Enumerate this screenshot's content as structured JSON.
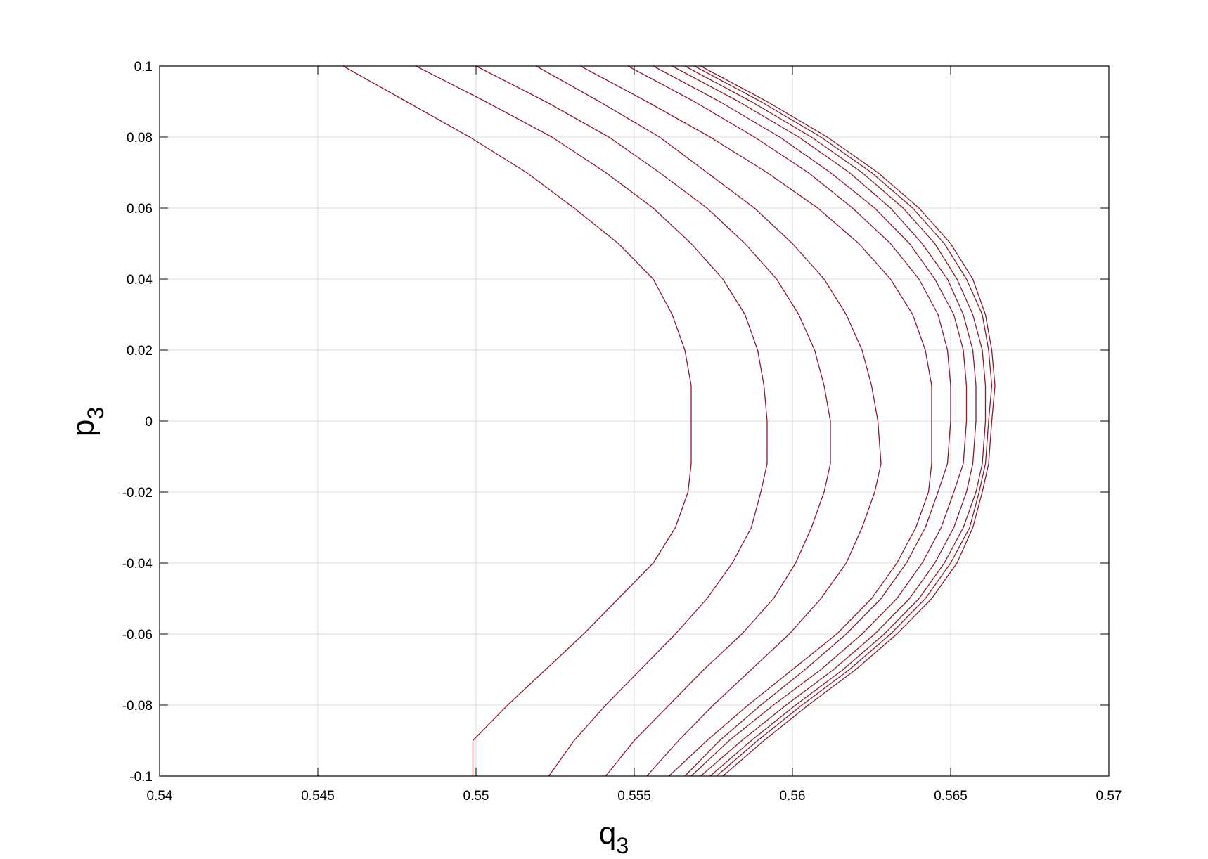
{
  "chart_data": {
    "type": "line",
    "title": "",
    "xlabel": {
      "main": "q",
      "sub": "3"
    },
    "ylabel": {
      "main": "p",
      "sub": "3"
    },
    "xlim": [
      0.54,
      0.57
    ],
    "ylim": [
      -0.1,
      0.1
    ],
    "grid": true,
    "line_color": "#8b1a2b",
    "x_ticks": [
      0.54,
      0.545,
      0.55,
      0.555,
      0.56,
      0.565,
      0.57
    ],
    "x_tick_labels": [
      "0.54",
      "0.545",
      "0.55",
      "0.555",
      "0.56",
      "0.565",
      "0.57"
    ],
    "y_ticks": [
      0.1,
      0.08,
      0.06,
      0.04,
      0.02,
      0,
      -0.02,
      -0.04,
      -0.06,
      -0.08,
      -0.1
    ],
    "y_tick_labels": [
      "0.1",
      "0.08",
      "0.06",
      "0.04",
      "0.02",
      "0",
      "-0.02",
      "-0.04",
      "-0.06",
      "-0.08",
      "-0.1"
    ],
    "series": [
      {
        "points": [
          [
            0.5458,
            0.1
          ],
          [
            0.5478,
            0.09
          ],
          [
            0.5498,
            0.08
          ],
          [
            0.5516,
            0.07
          ],
          [
            0.5531,
            0.06
          ],
          [
            0.5545,
            0.05
          ],
          [
            0.5556,
            0.04
          ],
          [
            0.5562,
            0.03
          ],
          [
            0.5566,
            0.02
          ],
          [
            0.5568,
            0.01
          ],
          [
            0.5568,
            0
          ],
          [
            0.5568,
            -0.012
          ],
          [
            0.5567,
            -0.02
          ],
          [
            0.5563,
            -0.03
          ],
          [
            0.5556,
            -0.04
          ],
          [
            0.5545,
            -0.05
          ],
          [
            0.5534,
            -0.06
          ],
          [
            0.5522,
            -0.07
          ],
          [
            0.551,
            -0.08
          ],
          [
            0.5499,
            -0.09
          ],
          [
            0.5499,
            -0.1
          ]
        ]
      },
      {
        "points": [
          [
            0.5481,
            0.1
          ],
          [
            0.5503,
            0.09
          ],
          [
            0.5524,
            0.08
          ],
          [
            0.5541,
            0.07
          ],
          [
            0.5556,
            0.06
          ],
          [
            0.5568,
            0.05
          ],
          [
            0.5578,
            0.04
          ],
          [
            0.5585,
            0.03
          ],
          [
            0.5589,
            0.02
          ],
          [
            0.5591,
            0.01
          ],
          [
            0.5592,
            0
          ],
          [
            0.5592,
            -0.012
          ],
          [
            0.559,
            -0.02
          ],
          [
            0.5587,
            -0.03
          ],
          [
            0.5581,
            -0.04
          ],
          [
            0.5573,
            -0.05
          ],
          [
            0.5563,
            -0.06
          ],
          [
            0.5552,
            -0.07
          ],
          [
            0.5541,
            -0.08
          ],
          [
            0.5531,
            -0.09
          ],
          [
            0.5523,
            -0.1
          ]
        ]
      },
      {
        "points": [
          [
            0.55,
            0.1
          ],
          [
            0.5522,
            0.09
          ],
          [
            0.5542,
            0.08
          ],
          [
            0.5558,
            0.07
          ],
          [
            0.5573,
            0.06
          ],
          [
            0.5585,
            0.05
          ],
          [
            0.5595,
            0.04
          ],
          [
            0.5602,
            0.03
          ],
          [
            0.5607,
            0.02
          ],
          [
            0.561,
            0.01
          ],
          [
            0.5612,
            0
          ],
          [
            0.5612,
            -0.012
          ],
          [
            0.561,
            -0.02
          ],
          [
            0.5606,
            -0.03
          ],
          [
            0.5601,
            -0.04
          ],
          [
            0.5594,
            -0.05
          ],
          [
            0.5584,
            -0.06
          ],
          [
            0.5572,
            -0.07
          ],
          [
            0.5561,
            -0.08
          ],
          [
            0.555,
            -0.09
          ],
          [
            0.5541,
            -0.1
          ]
        ]
      },
      {
        "points": [
          [
            0.5519,
            0.1
          ],
          [
            0.5539,
            0.09
          ],
          [
            0.5558,
            0.08
          ],
          [
            0.5573,
            0.07
          ],
          [
            0.5588,
            0.06
          ],
          [
            0.56,
            0.05
          ],
          [
            0.561,
            0.04
          ],
          [
            0.5617,
            0.03
          ],
          [
            0.5622,
            0.02
          ],
          [
            0.5625,
            0.01
          ],
          [
            0.5627,
            0
          ],
          [
            0.5628,
            -0.012
          ],
          [
            0.5626,
            -0.02
          ],
          [
            0.5622,
            -0.03
          ],
          [
            0.5617,
            -0.04
          ],
          [
            0.5609,
            -0.05
          ],
          [
            0.5599,
            -0.06
          ],
          [
            0.5587,
            -0.07
          ],
          [
            0.5575,
            -0.08
          ],
          [
            0.5564,
            -0.09
          ],
          [
            0.5554,
            -0.1
          ]
        ]
      },
      {
        "points": [
          [
            0.5533,
            0.1
          ],
          [
            0.5554,
            0.09
          ],
          [
            0.5574,
            0.08
          ],
          [
            0.5592,
            0.07
          ],
          [
            0.5608,
            0.06
          ],
          [
            0.5621,
            0.05
          ],
          [
            0.5631,
            0.04
          ],
          [
            0.5638,
            0.03
          ],
          [
            0.5642,
            0.02
          ],
          [
            0.5644,
            0.01
          ],
          [
            0.5644,
            0
          ],
          [
            0.5644,
            -0.012
          ],
          [
            0.5643,
            -0.02
          ],
          [
            0.5639,
            -0.03
          ],
          [
            0.5633,
            -0.04
          ],
          [
            0.5625,
            -0.05
          ],
          [
            0.5614,
            -0.06
          ],
          [
            0.56,
            -0.07
          ],
          [
            0.5586,
            -0.08
          ],
          [
            0.5573,
            -0.09
          ],
          [
            0.5561,
            -0.1
          ]
        ]
      },
      {
        "points": [
          [
            0.5548,
            0.1
          ],
          [
            0.5569,
            0.09
          ],
          [
            0.5588,
            0.08
          ],
          [
            0.5605,
            0.07
          ],
          [
            0.5619,
            0.06
          ],
          [
            0.5631,
            0.05
          ],
          [
            0.564,
            0.04
          ],
          [
            0.5646,
            0.03
          ],
          [
            0.5649,
            0.02
          ],
          [
            0.565,
            0.01
          ],
          [
            0.565,
            0
          ],
          [
            0.5649,
            -0.012
          ],
          [
            0.5646,
            -0.02
          ],
          [
            0.5642,
            -0.03
          ],
          [
            0.5636,
            -0.04
          ],
          [
            0.5628,
            -0.05
          ],
          [
            0.5617,
            -0.06
          ],
          [
            0.5604,
            -0.07
          ],
          [
            0.559,
            -0.08
          ],
          [
            0.5577,
            -0.09
          ],
          [
            0.5566,
            -0.1
          ]
        ]
      },
      {
        "points": [
          [
            0.5556,
            0.1
          ],
          [
            0.5577,
            0.09
          ],
          [
            0.5596,
            0.08
          ],
          [
            0.5612,
            0.07
          ],
          [
            0.5626,
            0.06
          ],
          [
            0.5637,
            0.05
          ],
          [
            0.5645,
            0.04
          ],
          [
            0.5651,
            0.03
          ],
          [
            0.5654,
            0.02
          ],
          [
            0.5655,
            0.01
          ],
          [
            0.5655,
            0
          ],
          [
            0.5654,
            -0.012
          ],
          [
            0.5651,
            -0.02
          ],
          [
            0.5647,
            -0.03
          ],
          [
            0.5641,
            -0.04
          ],
          [
            0.5633,
            -0.05
          ],
          [
            0.5622,
            -0.06
          ],
          [
            0.5609,
            -0.07
          ],
          [
            0.5594,
            -0.08
          ],
          [
            0.558,
            -0.09
          ],
          [
            0.5568,
            -0.1
          ]
        ]
      },
      {
        "points": [
          [
            0.5562,
            0.1
          ],
          [
            0.5583,
            0.09
          ],
          [
            0.5602,
            0.08
          ],
          [
            0.5618,
            0.07
          ],
          [
            0.5631,
            0.06
          ],
          [
            0.5641,
            0.05
          ],
          [
            0.5649,
            0.04
          ],
          [
            0.5654,
            0.03
          ],
          [
            0.5657,
            0.02
          ],
          [
            0.5658,
            0.01
          ],
          [
            0.5658,
            0
          ],
          [
            0.5657,
            -0.012
          ],
          [
            0.5655,
            -0.02
          ],
          [
            0.5651,
            -0.03
          ],
          [
            0.5645,
            -0.04
          ],
          [
            0.5637,
            -0.05
          ],
          [
            0.5626,
            -0.06
          ],
          [
            0.5613,
            -0.07
          ],
          [
            0.5598,
            -0.08
          ],
          [
            0.5584,
            -0.09
          ],
          [
            0.5571,
            -0.1
          ]
        ]
      },
      {
        "points": [
          [
            0.5566,
            0.1
          ],
          [
            0.5587,
            0.09
          ],
          [
            0.5606,
            0.08
          ],
          [
            0.5622,
            0.07
          ],
          [
            0.5635,
            0.06
          ],
          [
            0.5645,
            0.05
          ],
          [
            0.5652,
            0.04
          ],
          [
            0.5657,
            0.03
          ],
          [
            0.566,
            0.02
          ],
          [
            0.5661,
            0.01
          ],
          [
            0.5661,
            0
          ],
          [
            0.566,
            -0.012
          ],
          [
            0.5658,
            -0.02
          ],
          [
            0.5654,
            -0.03
          ],
          [
            0.5648,
            -0.04
          ],
          [
            0.564,
            -0.05
          ],
          [
            0.5629,
            -0.06
          ],
          [
            0.5616,
            -0.07
          ],
          [
            0.5601,
            -0.08
          ],
          [
            0.5587,
            -0.09
          ],
          [
            0.5574,
            -0.1
          ]
        ]
      },
      {
        "points": [
          [
            0.5569,
            0.1
          ],
          [
            0.559,
            0.09
          ],
          [
            0.5609,
            0.08
          ],
          [
            0.5625,
            0.07
          ],
          [
            0.5638,
            0.06
          ],
          [
            0.5648,
            0.05
          ],
          [
            0.5655,
            0.04
          ],
          [
            0.566,
            0.03
          ],
          [
            0.5662,
            0.02
          ],
          [
            0.5663,
            0.01
          ],
          [
            0.5662,
            0
          ],
          [
            0.5661,
            -0.012
          ],
          [
            0.5659,
            -0.02
          ],
          [
            0.5656,
            -0.03
          ],
          [
            0.565,
            -0.04
          ],
          [
            0.5642,
            -0.05
          ],
          [
            0.5631,
            -0.06
          ],
          [
            0.5618,
            -0.07
          ],
          [
            0.5603,
            -0.08
          ],
          [
            0.5589,
            -0.09
          ],
          [
            0.5576,
            -0.1
          ]
        ]
      },
      {
        "points": [
          [
            0.5571,
            0.1
          ],
          [
            0.5592,
            0.09
          ],
          [
            0.5611,
            0.08
          ],
          [
            0.5627,
            0.07
          ],
          [
            0.564,
            0.06
          ],
          [
            0.565,
            0.05
          ],
          [
            0.5657,
            0.04
          ],
          [
            0.5661,
            0.03
          ],
          [
            0.5663,
            0.02
          ],
          [
            0.5664,
            0.01
          ],
          [
            0.5663,
            0
          ],
          [
            0.5662,
            -0.012
          ],
          [
            0.566,
            -0.02
          ],
          [
            0.5657,
            -0.03
          ],
          [
            0.5652,
            -0.04
          ],
          [
            0.5644,
            -0.05
          ],
          [
            0.5633,
            -0.06
          ],
          [
            0.562,
            -0.07
          ],
          [
            0.5605,
            -0.08
          ],
          [
            0.5591,
            -0.09
          ],
          [
            0.5578,
            -0.1
          ]
        ]
      }
    ]
  }
}
